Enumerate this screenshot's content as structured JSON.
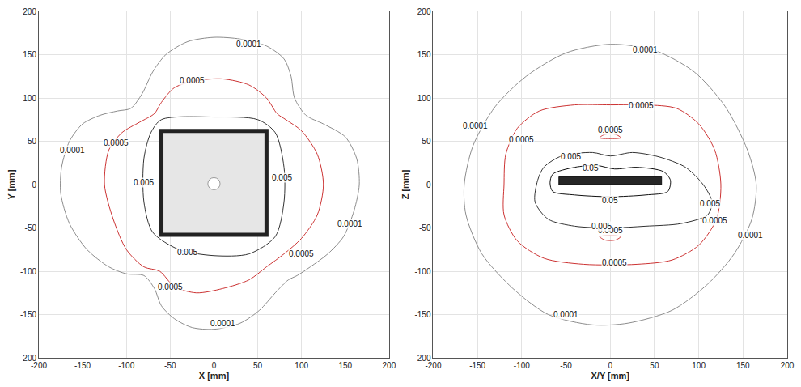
{
  "chart_data": [
    {
      "type": "line",
      "xlabel": "X [mm]",
      "ylabel": "Y [mm]",
      "xlim": [
        -200,
        200
      ],
      "ylim": [
        -200,
        200
      ],
      "xticks": [
        -200,
        -150,
        -100,
        -50,
        0,
        50,
        100,
        150,
        200
      ],
      "yticks": [
        -200,
        -150,
        -100,
        -50,
        0,
        50,
        100,
        150,
        200
      ],
      "grid": true,
      "series": [
        {
          "level": 0.0001,
          "color": "#8c8c8c",
          "x": [
            0,
            30,
            60,
            80,
            88,
            92,
            105,
            125,
            150,
            163,
            166,
            160,
            148,
            130,
            110,
            95,
            85,
            70,
            52,
            30,
            0,
            -25,
            -45,
            -60,
            -68,
            -80,
            -100,
            -120,
            -145,
            -165,
            -175,
            -174,
            -165,
            -150,
            -130,
            -110,
            -95,
            -82,
            -70,
            -55,
            -30,
            0
          ],
          "y": [
            170,
            168,
            160,
            145,
            125,
            100,
            80,
            70,
            55,
            30,
            0,
            -30,
            -60,
            -80,
            -95,
            -105,
            -110,
            -125,
            -145,
            -160,
            -167,
            -165,
            -155,
            -140,
            -120,
            -105,
            -103,
            -95,
            -75,
            -45,
            -10,
            20,
            50,
            70,
            80,
            85,
            88,
            105,
            130,
            150,
            165,
            170
          ],
          "label_at": [
            [
              40,
              162
            ],
            [
              -162,
              40
            ],
            [
              155,
              -45
            ],
            [
              10,
              -160
            ]
          ]
        },
        {
          "level": 0.0005,
          "color": "#cc3333",
          "x": [
            -60,
            -45,
            -20,
            10,
            40,
            60,
            72,
            82,
            100,
            118,
            125,
            118,
            100,
            80,
            60,
            40,
            10,
            -20,
            -45,
            -62,
            -80,
            -100,
            -115,
            -125,
            -120,
            -105,
            -85,
            -68,
            -60
          ],
          "y": [
            95,
            112,
            120,
            122,
            115,
            100,
            82,
            75,
            62,
            35,
            0,
            -35,
            -62,
            -80,
            -95,
            -110,
            -120,
            -125,
            -118,
            -100,
            -95,
            -75,
            -40,
            0,
            40,
            60,
            72,
            82,
            95
          ],
          "label_at": [
            [
              -25,
              120
            ],
            [
              -112,
              48
            ],
            [
              100,
              -80
            ],
            [
              -50,
              -118
            ]
          ]
        },
        {
          "level": 0.005,
          "color": "#333333",
          "x": [
            -60,
            0,
            50,
            70,
            80,
            80,
            70,
            40,
            0,
            -40,
            -70,
            -80,
            -80,
            -72,
            -60
          ],
          "y": [
            75,
            78,
            75,
            60,
            20,
            -20,
            -60,
            -80,
            -82,
            -75,
            -55,
            -20,
            30,
            60,
            75
          ],
          "label_at": [
            [
              -80,
              2
            ],
            [
              78,
              8
            ],
            [
              -30,
              -78
            ]
          ]
        }
      ]
    },
    {
      "type": "line",
      "xlabel": "X/Y [mm]",
      "ylabel": "Z [mm]",
      "xlim": [
        -200,
        200
      ],
      "ylim": [
        -200,
        200
      ],
      "xticks": [
        -200,
        -150,
        -100,
        -50,
        0,
        50,
        100,
        150,
        200
      ],
      "yticks": [
        -200,
        -150,
        -100,
        -50,
        0,
        50,
        100,
        150,
        200
      ],
      "grid": true,
      "series": [
        {
          "level": 0.0001,
          "color": "#8c8c8c",
          "x": [
            0,
            50,
            95,
            130,
            155,
            165,
            160,
            140,
            110,
            70,
            20,
            -20,
            -70,
            -110,
            -145,
            -163,
            -165,
            -155,
            -130,
            -95,
            -50,
            0
          ],
          "y": [
            162,
            155,
            130,
            90,
            40,
            0,
            -40,
            -80,
            -115,
            -145,
            -160,
            -162,
            -150,
            -120,
            -80,
            -35,
            0,
            45,
            90,
            125,
            152,
            162
          ],
          "label_at": [
            [
              40,
              156
            ],
            [
              -152,
              68
            ],
            [
              158,
              -58
            ],
            [
              -50,
              -150
            ]
          ]
        },
        {
          "level": 0.0005,
          "color": "#cc3333",
          "x": [
            -120,
            -118,
            -105,
            -80,
            -40,
            0,
            40,
            75,
            100,
            118,
            125,
            120,
            100,
            70,
            30,
            -30,
            -75,
            -105,
            -120,
            -120
          ],
          "y": [
            0,
            35,
            65,
            85,
            92,
            92,
            92,
            88,
            70,
            40,
            0,
            -40,
            -70,
            -87,
            -92,
            -92,
            -85,
            -65,
            -35,
            0
          ],
          "label_at": [
            [
              35,
              91
            ],
            [
              -100,
              52
            ],
            [
              118,
              -42
            ],
            [
              5,
              -90
            ]
          ]
        },
        {
          "level": 0.0005,
          "color": "#cc3333",
          "x": [
            -12,
            -6,
            6,
            12,
            0,
            -12
          ],
          "y": [
            54,
            58,
            58,
            54,
            53,
            54
          ],
          "label_at": [
            [
              0,
              63
            ]
          ]
        },
        {
          "level": 0.0005,
          "color": "#cc3333",
          "x": [
            -12,
            -6,
            6,
            12,
            0,
            -12
          ],
          "y": [
            -60,
            -64,
            -64,
            -60,
            -59,
            -60
          ],
          "label_at": [
            [
              0,
              -53
            ]
          ]
        },
        {
          "level": 0.005,
          "color": "#333333",
          "x": [
            -75,
            -55,
            -20,
            0,
            25,
            55,
            85,
            105,
            115,
            110,
            80,
            40,
            0,
            -40,
            -70,
            -85,
            -82,
            -75
          ],
          "y": [
            20,
            33,
            37,
            33,
            37,
            32,
            20,
            0,
            -20,
            -35,
            -45,
            -48,
            -50,
            -48,
            -40,
            -20,
            5,
            20
          ],
          "label_at": [
            [
              -45,
              32
            ],
            [
              113,
              -22
            ],
            [
              -10,
              -48
            ]
          ]
        },
        {
          "level": 0.05,
          "color": "#111111",
          "x": [
            -65,
            -40,
            -15,
            5,
            30,
            60,
            68,
            65,
            40,
            0,
            -40,
            -65,
            -68,
            -65
          ],
          "y": [
            12,
            20,
            22,
            18,
            20,
            15,
            5,
            -8,
            -12,
            -14,
            -12,
            -8,
            2,
            12
          ],
          "label_at": [
            [
              -22,
              19
            ],
            [
              0,
              -18
            ]
          ]
        }
      ]
    }
  ]
}
